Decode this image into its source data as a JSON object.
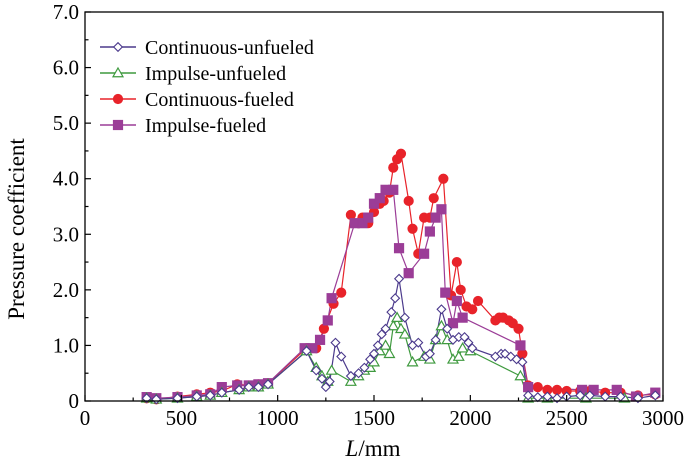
{
  "chart_data": {
    "type": "line",
    "title": "",
    "xlabel_italic": "L",
    "xlabel_rest": "/mm",
    "ylabel": "Pressure coefficient",
    "xlim": [
      0,
      3000
    ],
    "ylim": [
      0,
      7.0
    ],
    "xticks": [
      0,
      500,
      1000,
      1500,
      2000,
      2500,
      3000
    ],
    "yticks": [
      0,
      1.0,
      2.0,
      3.0,
      4.0,
      5.0,
      6.0,
      7.0
    ],
    "ytick_labels": [
      "0",
      "1.0",
      "2.0",
      "3.0",
      "4.0",
      "5.0",
      "6.0",
      "7.0"
    ],
    "legend_position": "top-left",
    "series": [
      {
        "name": "Continuous-unfueled",
        "color": "#4b3a8c",
        "marker": "diamond-open",
        "points": [
          [
            320,
            0.05
          ],
          [
            370,
            0.03
          ],
          [
            480,
            0.05
          ],
          [
            580,
            0.08
          ],
          [
            650,
            0.1
          ],
          [
            710,
            0.15
          ],
          [
            800,
            0.2
          ],
          [
            850,
            0.25
          ],
          [
            900,
            0.25
          ],
          [
            950,
            0.3
          ],
          [
            1150,
            0.9
          ],
          [
            1200,
            0.55
          ],
          [
            1230,
            0.4
          ],
          [
            1250,
            0.25
          ],
          [
            1270,
            0.35
          ],
          [
            1300,
            1.05
          ],
          [
            1330,
            0.8
          ],
          [
            1380,
            0.45
          ],
          [
            1420,
            0.5
          ],
          [
            1450,
            0.6
          ],
          [
            1480,
            0.75
          ],
          [
            1500,
            0.85
          ],
          [
            1520,
            1.0
          ],
          [
            1540,
            1.2
          ],
          [
            1560,
            1.3
          ],
          [
            1590,
            1.6
          ],
          [
            1610,
            1.85
          ],
          [
            1630,
            2.2
          ],
          [
            1660,
            1.5
          ],
          [
            1700,
            1.0
          ],
          [
            1730,
            1.05
          ],
          [
            1770,
            0.8
          ],
          [
            1790,
            0.85
          ],
          [
            1820,
            1.1
          ],
          [
            1850,
            1.65
          ],
          [
            1880,
            1.3
          ],
          [
            1910,
            1.1
          ],
          [
            1940,
            1.15
          ],
          [
            1970,
            1.15
          ],
          [
            1990,
            1.05
          ],
          [
            2010,
            0.95
          ],
          [
            2130,
            0.8
          ],
          [
            2160,
            0.85
          ],
          [
            2180,
            0.85
          ],
          [
            2210,
            0.8
          ],
          [
            2240,
            0.75
          ],
          [
            2270,
            0.7
          ],
          [
            2300,
            0.1
          ],
          [
            2350,
            0.07
          ],
          [
            2400,
            0.08
          ],
          [
            2450,
            0.05
          ],
          [
            2500,
            0.08
          ],
          [
            2570,
            0.1
          ],
          [
            2620,
            0.1
          ],
          [
            2700,
            0.08
          ],
          [
            2780,
            0.08
          ],
          [
            2870,
            0.05
          ],
          [
            2960,
            0.1
          ]
        ]
      },
      {
        "name": "Impulse-unfueled",
        "color": "#3f9a3f",
        "marker": "triangle-open",
        "points": [
          [
            320,
            0.05
          ],
          [
            370,
            0.03
          ],
          [
            480,
            0.05
          ],
          [
            580,
            0.08
          ],
          [
            650,
            0.1
          ],
          [
            710,
            0.15
          ],
          [
            800,
            0.2
          ],
          [
            850,
            0.25
          ],
          [
            900,
            0.25
          ],
          [
            950,
            0.3
          ],
          [
            1150,
            0.9
          ],
          [
            1200,
            0.6
          ],
          [
            1230,
            0.45
          ],
          [
            1260,
            0.35
          ],
          [
            1280,
            0.55
          ],
          [
            1380,
            0.35
          ],
          [
            1420,
            0.45
          ],
          [
            1450,
            0.55
          ],
          [
            1480,
            0.6
          ],
          [
            1500,
            0.7
          ],
          [
            1530,
            0.9
          ],
          [
            1560,
            1.0
          ],
          [
            1580,
            0.85
          ],
          [
            1600,
            1.35
          ],
          [
            1620,
            1.5
          ],
          [
            1640,
            1.3
          ],
          [
            1660,
            1.2
          ],
          [
            1700,
            0.7
          ],
          [
            1760,
            0.8
          ],
          [
            1790,
            0.75
          ],
          [
            1820,
            1.1
          ],
          [
            1850,
            1.35
          ],
          [
            1880,
            1.1
          ],
          [
            1910,
            0.75
          ],
          [
            1940,
            0.8
          ],
          [
            1960,
            0.95
          ],
          [
            2000,
            0.9
          ],
          [
            2260,
            0.45
          ],
          [
            2300,
            0.05
          ],
          [
            2400,
            0.05
          ],
          [
            2600,
            0.05
          ],
          [
            2800,
            0.05
          ]
        ]
      },
      {
        "name": "Continuous-fueled",
        "color": "#e8232a",
        "marker": "circle-filled",
        "points": [
          [
            320,
            0.05
          ],
          [
            370,
            0.03
          ],
          [
            480,
            0.08
          ],
          [
            580,
            0.12
          ],
          [
            650,
            0.15
          ],
          [
            710,
            0.18
          ],
          [
            790,
            0.3
          ],
          [
            850,
            0.28
          ],
          [
            900,
            0.3
          ],
          [
            950,
            0.32
          ],
          [
            1150,
            0.95
          ],
          [
            1200,
            0.95
          ],
          [
            1240,
            1.3
          ],
          [
            1290,
            1.75
          ],
          [
            1330,
            1.95
          ],
          [
            1380,
            3.35
          ],
          [
            1420,
            3.2
          ],
          [
            1440,
            3.3
          ],
          [
            1470,
            3.2
          ],
          [
            1500,
            3.4
          ],
          [
            1530,
            3.55
          ],
          [
            1550,
            3.6
          ],
          [
            1580,
            3.75
          ],
          [
            1600,
            4.2
          ],
          [
            1620,
            4.35
          ],
          [
            1640,
            4.45
          ],
          [
            1680,
            3.6
          ],
          [
            1700,
            3.1
          ],
          [
            1730,
            2.65
          ],
          [
            1760,
            3.3
          ],
          [
            1790,
            3.3
          ],
          [
            1810,
            3.65
          ],
          [
            1860,
            4.0
          ],
          [
            1900,
            1.9
          ],
          [
            1930,
            2.5
          ],
          [
            1950,
            2.0
          ],
          [
            1980,
            1.7
          ],
          [
            2010,
            1.65
          ],
          [
            2040,
            1.8
          ],
          [
            2130,
            1.45
          ],
          [
            2150,
            1.5
          ],
          [
            2170,
            1.5
          ],
          [
            2200,
            1.45
          ],
          [
            2220,
            1.4
          ],
          [
            2250,
            1.3
          ],
          [
            2270,
            0.85
          ],
          [
            2300,
            0.28
          ],
          [
            2350,
            0.25
          ],
          [
            2400,
            0.2
          ],
          [
            2450,
            0.2
          ],
          [
            2500,
            0.18
          ],
          [
            2570,
            0.18
          ],
          [
            2620,
            0.18
          ],
          [
            2700,
            0.15
          ],
          [
            2780,
            0.15
          ],
          [
            2870,
            0.1
          ],
          [
            2960,
            0.12
          ]
        ]
      },
      {
        "name": "Impulse-fueled",
        "color": "#9b3d97",
        "marker": "square-filled",
        "points": [
          [
            320,
            0.07
          ],
          [
            370,
            0.05
          ],
          [
            480,
            0.07
          ],
          [
            580,
            0.1
          ],
          [
            650,
            0.12
          ],
          [
            710,
            0.25
          ],
          [
            790,
            0.28
          ],
          [
            850,
            0.28
          ],
          [
            900,
            0.3
          ],
          [
            950,
            0.32
          ],
          [
            1140,
            0.95
          ],
          [
            1180,
            0.95
          ],
          [
            1220,
            1.1
          ],
          [
            1260,
            1.45
          ],
          [
            1280,
            1.85
          ],
          [
            1400,
            3.2
          ],
          [
            1440,
            3.2
          ],
          [
            1470,
            3.3
          ],
          [
            1500,
            3.55
          ],
          [
            1530,
            3.65
          ],
          [
            1560,
            3.8
          ],
          [
            1600,
            3.8
          ],
          [
            1630,
            2.75
          ],
          [
            1680,
            2.3
          ],
          [
            1760,
            2.65
          ],
          [
            1790,
            3.05
          ],
          [
            1820,
            3.3
          ],
          [
            1850,
            3.45
          ],
          [
            1870,
            1.95
          ],
          [
            1910,
            1.4
          ],
          [
            1930,
            1.8
          ],
          [
            1960,
            1.5
          ],
          [
            2260,
            1.0
          ],
          [
            2300,
            0.25
          ],
          [
            2580,
            0.2
          ],
          [
            2640,
            0.2
          ],
          [
            2760,
            0.2
          ],
          [
            2860,
            0.08
          ],
          [
            2960,
            0.15
          ]
        ]
      }
    ]
  }
}
